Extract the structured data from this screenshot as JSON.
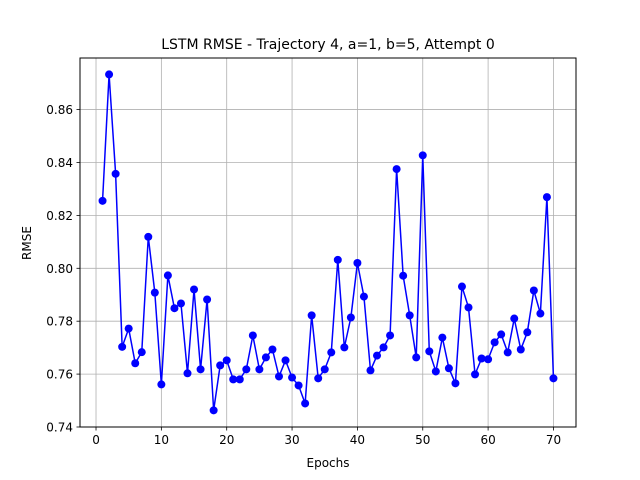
{
  "chart_data": {
    "type": "line",
    "title": "LSTM RMSE - Trajectory 4, a=1, b=5, Attempt 0",
    "xlabel": "Epochs",
    "ylabel": "RMSE",
    "xlim": [
      -2.45,
      73.45
    ],
    "ylim": [
      0.74,
      0.8795
    ],
    "xticks": [
      0,
      10,
      20,
      30,
      40,
      50,
      60,
      70
    ],
    "yticks": [
      0.74,
      0.76,
      0.78,
      0.8,
      0.82,
      0.84,
      0.86
    ],
    "xtick_labels": [
      "0",
      "10",
      "20",
      "30",
      "40",
      "50",
      "60",
      "70"
    ],
    "ytick_labels": [
      "0.74",
      "0.76",
      "0.78",
      "0.80",
      "0.82",
      "0.84",
      "0.86"
    ],
    "grid": true,
    "series": [
      {
        "color": "#0000ff",
        "marker": "circle",
        "x": [
          1,
          2,
          3,
          4,
          5,
          6,
          7,
          8,
          9,
          10,
          11,
          12,
          13,
          14,
          15,
          16,
          17,
          18,
          19,
          20,
          21,
          22,
          23,
          24,
          25,
          26,
          27,
          28,
          29,
          30,
          31,
          32,
          33,
          34,
          35,
          36,
          37,
          38,
          39,
          40,
          41,
          42,
          43,
          44,
          45,
          46,
          47,
          48,
          49,
          50,
          51,
          52,
          53,
          54,
          55,
          56,
          57,
          58,
          59,
          60,
          61,
          62,
          63,
          64,
          65,
          66,
          67,
          68,
          69,
          70
        ],
        "values": [
          0.8255,
          0.8733,
          0.8357,
          0.7703,
          0.7772,
          0.7641,
          0.7683,
          0.8119,
          0.7908,
          0.7561,
          0.7973,
          0.7849,
          0.7867,
          0.7603,
          0.792,
          0.7618,
          0.7882,
          0.7463,
          0.7633,
          0.7652,
          0.758,
          0.758,
          0.7618,
          0.7746,
          0.7618,
          0.7663,
          0.7693,
          0.7591,
          0.7652,
          0.7587,
          0.7557,
          0.7489,
          0.7822,
          0.7584,
          0.7618,
          0.7682,
          0.8032,
          0.7701,
          0.7814,
          0.802,
          0.7893,
          0.7614,
          0.767,
          0.7701,
          0.7746,
          0.8375,
          0.7972,
          0.7822,
          0.7663,
          0.8427,
          0.7686,
          0.761,
          0.7738,
          0.7622,
          0.7565,
          0.7931,
          0.7852,
          0.7599,
          0.7659,
          0.7656,
          0.772,
          0.775,
          0.7682,
          0.781,
          0.7693,
          0.7758,
          0.7916,
          0.7829,
          0.8269,
          0.7584
        ]
      }
    ]
  }
}
